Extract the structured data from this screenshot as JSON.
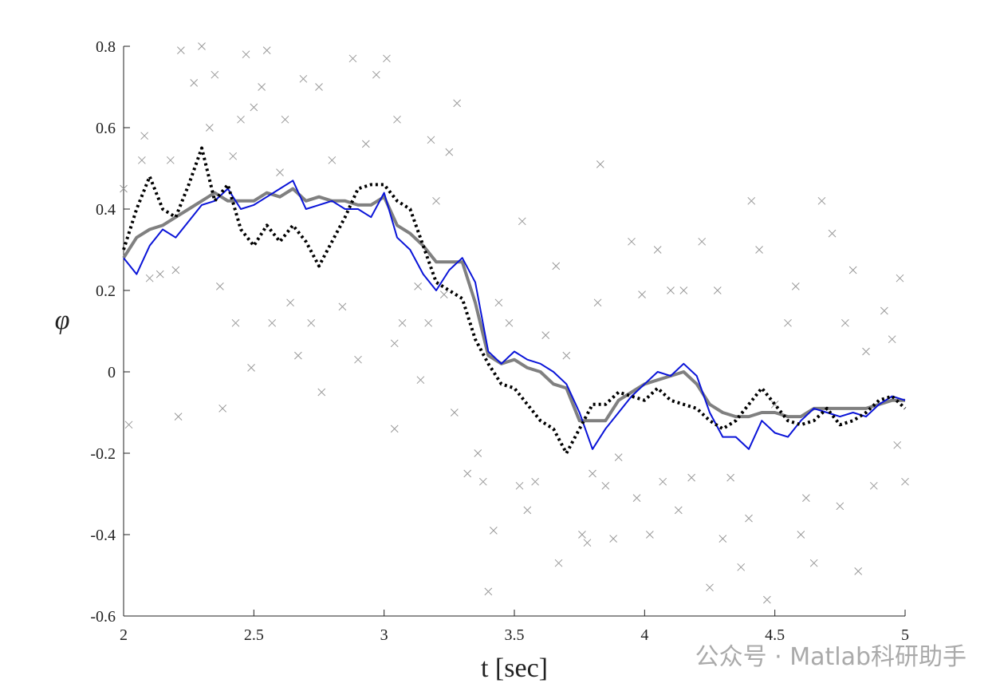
{
  "chart_data": {
    "type": "line",
    "xlabel": "t [sec]",
    "ylabel": "φ",
    "watermark": "公众号 · Matlab科研助手",
    "xlim": [
      2,
      5
    ],
    "ylim": [
      -0.6,
      0.8
    ],
    "xticks": [
      2,
      2.5,
      3,
      3.5,
      4,
      4.5,
      5
    ],
    "yticks": [
      -0.6,
      -0.4,
      -0.2,
      0,
      0.2,
      0.4,
      0.6,
      0.8
    ],
    "x": [
      2.0,
      2.05,
      2.1,
      2.15,
      2.2,
      2.25,
      2.3,
      2.35,
      2.4,
      2.45,
      2.5,
      2.55,
      2.6,
      2.65,
      2.7,
      2.75,
      2.8,
      2.85,
      2.9,
      2.95,
      3.0,
      3.05,
      3.1,
      3.15,
      3.2,
      3.25,
      3.3,
      3.35,
      3.4,
      3.45,
      3.5,
      3.55,
      3.6,
      3.65,
      3.7,
      3.75,
      3.8,
      3.85,
      3.9,
      3.95,
      4.0,
      4.05,
      4.1,
      4.15,
      4.2,
      4.25,
      4.3,
      4.35,
      4.4,
      4.45,
      4.5,
      4.55,
      4.6,
      4.65,
      4.7,
      4.75,
      4.8,
      4.85,
      4.9,
      4.95,
      5.0
    ],
    "series": [
      {
        "color": "#808080",
        "width": 4,
        "style": "solid",
        "values": [
          0.28,
          0.33,
          0.35,
          0.36,
          0.38,
          0.4,
          0.42,
          0.44,
          0.42,
          0.42,
          0.42,
          0.44,
          0.43,
          0.45,
          0.42,
          0.43,
          0.42,
          0.42,
          0.41,
          0.41,
          0.43,
          0.36,
          0.34,
          0.31,
          0.27,
          0.27,
          0.27,
          0.17,
          0.04,
          0.02,
          0.03,
          0.01,
          0.0,
          -0.03,
          -0.04,
          -0.12,
          -0.12,
          -0.12,
          -0.07,
          -0.05,
          -0.03,
          -0.02,
          -0.01,
          0.0,
          -0.03,
          -0.08,
          -0.1,
          -0.11,
          -0.11,
          -0.1,
          -0.1,
          -0.11,
          -0.11,
          -0.09,
          -0.09,
          -0.09,
          -0.09,
          -0.09,
          -0.08,
          -0.07,
          -0.07
        ]
      },
      {
        "color": "#0a14d8",
        "width": 2,
        "style": "solid",
        "values": [
          0.28,
          0.24,
          0.31,
          0.35,
          0.33,
          0.37,
          0.41,
          0.42,
          0.45,
          0.4,
          0.41,
          0.43,
          0.45,
          0.47,
          0.4,
          0.41,
          0.42,
          0.4,
          0.4,
          0.38,
          0.44,
          0.33,
          0.3,
          0.24,
          0.2,
          0.25,
          0.28,
          0.22,
          0.05,
          0.02,
          0.05,
          0.03,
          0.02,
          0.0,
          -0.03,
          -0.1,
          -0.19,
          -0.14,
          -0.1,
          -0.06,
          -0.03,
          0.0,
          -0.01,
          0.02,
          -0.01,
          -0.1,
          -0.16,
          -0.16,
          -0.19,
          -0.12,
          -0.15,
          -0.16,
          -0.12,
          -0.09,
          -0.1,
          -0.11,
          -0.1,
          -0.11,
          -0.08,
          -0.06,
          -0.07
        ]
      },
      {
        "color": "#000000",
        "width": 4,
        "style": "dotted",
        "values": [
          0.3,
          0.4,
          0.48,
          0.4,
          0.38,
          0.46,
          0.55,
          0.42,
          0.46,
          0.35,
          0.31,
          0.36,
          0.32,
          0.36,
          0.32,
          0.26,
          0.32,
          0.38,
          0.45,
          0.46,
          0.46,
          0.42,
          0.4,
          0.31,
          0.22,
          0.2,
          0.18,
          0.08,
          0.02,
          -0.03,
          -0.04,
          -0.08,
          -0.12,
          -0.14,
          -0.2,
          -0.14,
          -0.08,
          -0.08,
          -0.05,
          -0.06,
          -0.07,
          -0.04,
          -0.07,
          -0.08,
          -0.09,
          -0.12,
          -0.14,
          -0.12,
          -0.08,
          -0.04,
          -0.08,
          -0.12,
          -0.13,
          -0.12,
          -0.09,
          -0.13,
          -0.12,
          -0.1,
          -0.07,
          -0.06,
          -0.09
        ]
      }
    ],
    "points": {
      "color": "#999999",
      "marker": "x",
      "x": [
        2.0,
        2.02,
        2.07,
        2.08,
        2.1,
        2.14,
        2.18,
        2.2,
        2.21,
        2.22,
        2.27,
        2.3,
        2.33,
        2.35,
        2.37,
        2.38,
        2.42,
        2.43,
        2.45,
        2.47,
        2.49,
        2.5,
        2.53,
        2.55,
        2.57,
        2.6,
        2.62,
        2.64,
        2.67,
        2.69,
        2.72,
        2.75,
        2.76,
        2.8,
        2.84,
        2.88,
        2.9,
        2.93,
        2.97,
        3.01,
        3.04,
        3.04,
        3.05,
        3.07,
        3.13,
        3.14,
        3.17,
        3.18,
        3.2,
        3.23,
        3.25,
        3.27,
        3.28,
        3.32,
        3.36,
        3.38,
        3.4,
        3.42,
        3.44,
        3.48,
        3.52,
        3.53,
        3.55,
        3.58,
        3.62,
        3.66,
        3.67,
        3.7,
        3.76,
        3.78,
        3.8,
        3.82,
        3.83,
        3.85,
        3.88,
        3.9,
        3.95,
        3.97,
        3.99,
        4.02,
        4.05,
        4.07,
        4.1,
        4.13,
        4.15,
        4.18,
        4.22,
        4.25,
        4.28,
        4.3,
        4.33,
        4.37,
        4.4,
        4.41,
        4.44,
        4.47,
        4.5,
        4.55,
        4.58,
        4.6,
        4.62,
        4.65,
        4.68,
        4.72,
        4.75,
        4.77,
        4.8,
        4.82,
        4.85,
        4.88,
        4.92,
        4.95,
        4.97,
        4.98,
        5.0
      ],
      "y": [
        0.45,
        -0.13,
        0.52,
        0.58,
        0.23,
        0.24,
        0.52,
        0.25,
        -0.11,
        0.79,
        0.71,
        0.8,
        0.6,
        0.73,
        0.21,
        -0.09,
        0.53,
        0.12,
        0.62,
        0.78,
        0.01,
        0.65,
        0.7,
        0.79,
        0.12,
        0.49,
        0.62,
        0.17,
        0.04,
        0.72,
        0.12,
        0.7,
        -0.05,
        0.52,
        0.16,
        0.77,
        0.03,
        0.56,
        0.73,
        0.77,
        0.07,
        -0.14,
        0.62,
        0.12,
        0.21,
        -0.02,
        0.12,
        0.57,
        0.42,
        0.19,
        0.54,
        -0.1,
        0.66,
        -0.25,
        -0.2,
        -0.27,
        -0.54,
        -0.39,
        0.17,
        0.12,
        -0.28,
        0.37,
        -0.34,
        -0.27,
        0.09,
        0.26,
        -0.47,
        0.04,
        -0.4,
        -0.42,
        -0.25,
        0.17,
        0.51,
        -0.28,
        -0.41,
        -0.21,
        0.32,
        -0.31,
        0.19,
        -0.4,
        0.3,
        -0.27,
        0.2,
        -0.34,
        0.2,
        -0.26,
        0.32,
        -0.53,
        0.2,
        -0.41,
        -0.26,
        -0.48,
        -0.36,
        0.42,
        0.3,
        -0.56,
        -0.08,
        0.12,
        0.21,
        -0.4,
        -0.31,
        -0.47,
        0.42,
        0.34,
        -0.33,
        0.12,
        0.25,
        -0.49,
        0.05,
        -0.28,
        0.15,
        0.08,
        -0.18,
        0.23,
        -0.27
      ]
    }
  }
}
